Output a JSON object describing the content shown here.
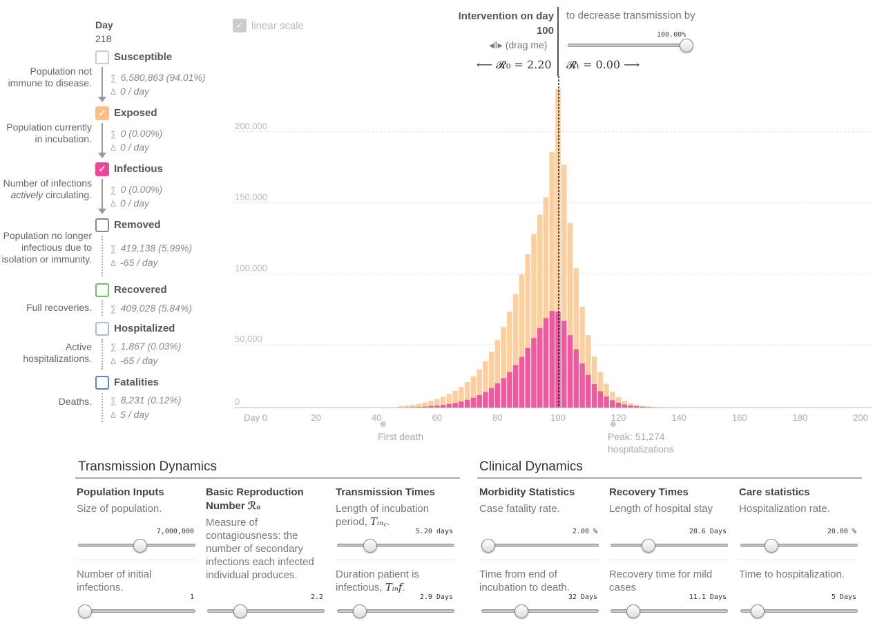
{
  "legend": {
    "day_label": "Day",
    "day_value": "218",
    "categories": [
      {
        "name": "Susceptible",
        "desc": "Population not immune to disease.",
        "sum": "6,580,863 (94.01%)",
        "delta": "0 / day",
        "color": "#cccccc",
        "checked": false
      },
      {
        "name": "Exposed",
        "desc": "Population currently in incubation.",
        "sum": "0 (0.00%)",
        "delta": "0 / day",
        "color": "#fdbf85",
        "checked": true
      },
      {
        "name": "Infectious",
        "desc_pre": "Number of infections ",
        "desc_em": "actively",
        "desc_post": " circulating.",
        "sum": "0 (0.00%)",
        "delta": "0 / day",
        "color": "#f0449a",
        "checked": true
      },
      {
        "name": "Removed",
        "desc": "Population no longer infectious due to isolation or immunity.",
        "sum": "419,138 (5.99%)",
        "delta": "-65 / day",
        "color": "#888888",
        "checked": false
      },
      {
        "name": "Recovered",
        "desc": "Full recoveries.",
        "sum": "409,028 (5.84%)",
        "color": "#6fc26a",
        "checked": false
      },
      {
        "name": "Hospitalized",
        "desc": "Active hospitalizations.",
        "sum": "1,867 (0.03%)",
        "delta": "-65 / day",
        "color": "#a6b9e2",
        "checked": false
      },
      {
        "name": "Fatalities",
        "desc": "Deaths.",
        "sum": "8,231 (0.12%)",
        "delta": "5 / day",
        "color": "#5b87be",
        "checked": false
      }
    ],
    "sum_symbol": "∑",
    "delta_symbol": "Δ",
    "check_glyph": "✓"
  },
  "chart": {
    "linear_scale_label": "linear scale",
    "intervention_title": "Intervention on day",
    "intervention_day": "100",
    "drag_label": "(drag me)",
    "decrease_label": "to decrease transmission by",
    "decrease_value": "100.00%",
    "decrease_fraction": 1.0,
    "r0_label": "⟵ 𝓡₀ = 2.20",
    "rt_label": "𝓡ₜ = 0.00 ⟶",
    "first_death_label": "First death",
    "peak_label_1": "Peak: 51,274",
    "peak_label_2": "hospitalizations",
    "colors": {
      "exposed": "#fdcf9f",
      "infectious": "#f0589f",
      "grid": "#dddddd",
      "axis": "#bbbbbb",
      "label": "#bbbbbb"
    }
  },
  "chart_data": {
    "type": "bar",
    "title": "",
    "xlabel": "",
    "ylabel": "",
    "x_tick_labels": [
      "Day 0",
      "20",
      "40",
      "60",
      "80",
      "100",
      "120",
      "140",
      "160",
      "180",
      "200"
    ],
    "y_tick_labels": [
      "0",
      "50,000",
      "100,000",
      "150,000",
      "200,000"
    ],
    "xlim": [
      -2,
      204
    ],
    "ylim": [
      0,
      200000
    ],
    "bar_days": [
      46,
      48,
      50,
      52,
      54,
      56,
      58,
      60,
      62,
      64,
      66,
      68,
      70,
      72,
      74,
      76,
      78,
      80,
      82,
      84,
      86,
      88,
      90,
      92,
      94,
      96,
      98,
      100,
      102,
      104,
      106,
      108,
      110,
      112,
      114,
      116,
      118,
      120,
      122,
      124,
      126,
      128,
      130,
      132,
      134,
      136,
      138,
      140,
      142,
      144
    ],
    "series": [
      {
        "name": "Infectious",
        "values": [
          0,
          100,
          200,
          300,
          500,
          700,
          1000,
          1400,
          1900,
          2500,
          3300,
          4300,
          5500,
          7000,
          8800,
          11000,
          13800,
          17000,
          20700,
          25000,
          30000,
          35700,
          42000,
          49000,
          56000,
          63000,
          68000,
          67500,
          61000,
          51000,
          41000,
          31000,
          23000,
          16500,
          11500,
          7800,
          5200,
          3400,
          2200,
          1400,
          900,
          550,
          340,
          200,
          120,
          70,
          40,
          20,
          10,
          5
        ]
      },
      {
        "name": "Exposed",
        "values": [
          500,
          1000,
          1300,
          1700,
          2200,
          2900,
          3700,
          4600,
          5700,
          7000,
          8500,
          10300,
          12500,
          15000,
          18000,
          21500,
          25500,
          30500,
          36000,
          42500,
          50000,
          58000,
          66000,
          73000,
          80000,
          85000,
          112000,
          157000,
          110000,
          79000,
          57000,
          40000,
          28000,
          19500,
          13500,
          9000,
          6000,
          3900,
          2500,
          1600,
          1000,
          650,
          420,
          270,
          170,
          110,
          70,
          40,
          25,
          15
        ]
      }
    ],
    "markers": [
      {
        "day": 41,
        "label": "First death"
      },
      {
        "day": 118,
        "label": "Peak: 51,274 hospitalizations"
      }
    ],
    "intervention_day": 100
  },
  "transmission": {
    "title": "Transmission Dynamics",
    "columns": [
      {
        "head": "Population Inputs",
        "sub": "Size of population.",
        "value": "7,000,000",
        "fraction": 0.53,
        "sub2": "Number of initial infections.",
        "value2": "1",
        "fraction2": 0.0
      },
      {
        "head": "Basic Reproduction Number ℛ₀",
        "desc": "Measure of contagiousness: the number of secondary infections each infected individual produces.",
        "value2": "2.2",
        "fraction2": 0.25
      },
      {
        "head": "Transmission Times",
        "sub_pre": "Length of incubation period, ",
        "sub_math": "Tᵢₙ꜀",
        "sub_post": ".",
        "value": "5.20 days",
        "fraction": 0.25,
        "sub2_pre": "Duration patient is infectious, ",
        "sub2_math": "Tᵢₙf",
        "sub2_post": ".",
        "value2": "2.9 Days",
        "fraction2": 0.15
      }
    ]
  },
  "clinical": {
    "title": "Clinical Dynamics",
    "columns": [
      {
        "head": "Morbidity Statistics",
        "sub": "Case fatality rate.",
        "value": "2.00 %",
        "fraction": 0.0,
        "sub2": "Time from end of incubation to death.",
        "value2": "32 Days",
        "fraction2": 0.32
      },
      {
        "head": "Recovery Times",
        "sub": "Length of hospital stay",
        "value": "28.6 Days",
        "fraction": 0.3,
        "sub2": "Recovery time for mild cases",
        "value2": "11.1 Days",
        "fraction2": 0.15
      },
      {
        "head": "Care statistics",
        "sub": "Hospitalization rate.",
        "value": "20.00 %",
        "fraction": 0.23,
        "sub2": "Time to hospitalization.",
        "value2": "5 Days",
        "fraction2": 0.1
      }
    ]
  }
}
